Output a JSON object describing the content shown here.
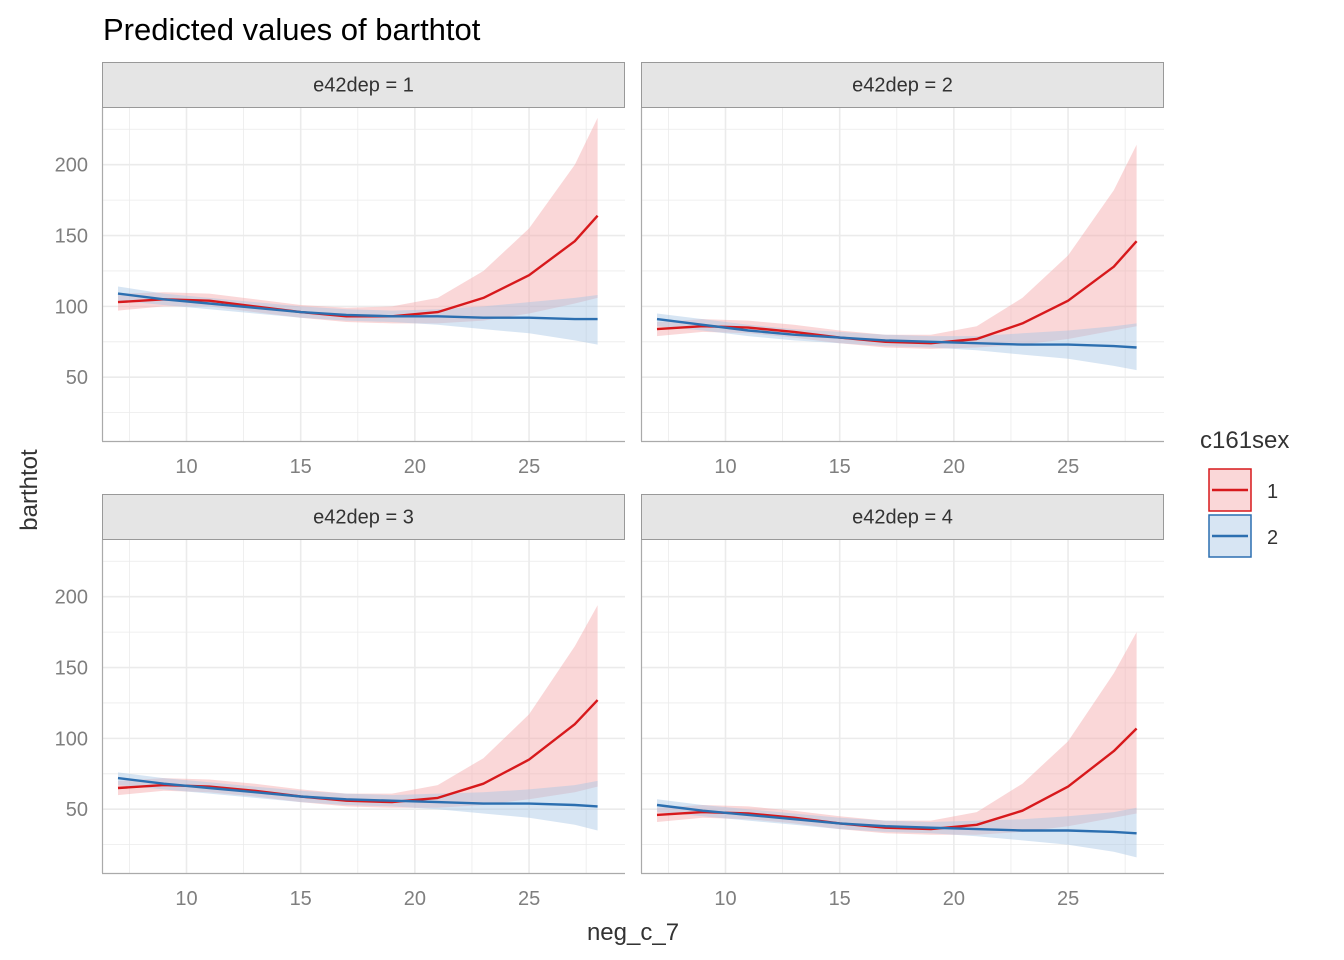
{
  "chart_data": {
    "type": "line",
    "title": "Predicted values of barthtot",
    "xlabel": "neg_c_7",
    "ylabel": "barthtot",
    "xlim": [
      6.3,
      29.2
    ],
    "ylim": [
      5,
      240
    ],
    "x_ticks": [
      10,
      15,
      20,
      25
    ],
    "y_ticks": [
      50,
      100,
      150,
      200
    ],
    "grid": true,
    "legend": {
      "title": "c161sex",
      "position": "right",
      "entries": [
        "1",
        "2"
      ]
    },
    "colors": {
      "series1_line": "#d7191c",
      "series1_band": "#f4a6a8",
      "series2_line": "#2c6fb0",
      "series2_band": "#a6c5e4",
      "strip_fill": "#e5e5e5",
      "strip_border": "#999999",
      "grid": "#ebebeb",
      "axis": "#aaaaaa"
    },
    "panels": [
      {
        "label": "e42dep = 1",
        "x": [
          7,
          9,
          11,
          13,
          15,
          17,
          19,
          21,
          23,
          25,
          27,
          28
        ],
        "series": [
          {
            "name": "1",
            "values": [
              103,
              105,
              104,
              100,
              96,
              93,
              93,
              96,
              106,
              122,
              146,
              164
            ],
            "lower": [
              97,
              100,
              100,
              96,
              92,
              89,
              88,
              88,
              90,
              95,
              102,
              106
            ],
            "upper": [
              109,
              110,
              109,
              105,
              101,
              99,
              100,
              106,
              125,
              155,
              200,
              233
            ]
          },
          {
            "name": "2",
            "values": [
              109,
              105,
              102,
              99,
              96,
              94,
              93,
              93,
              92,
              92,
              91,
              91
            ],
            "lower": [
              104,
              101,
              98,
              95,
              92,
              90,
              89,
              87,
              84,
              81,
              76,
              73
            ],
            "upper": [
              114,
              109,
              106,
              103,
              100,
              98,
              97,
              98,
              100,
              103,
              106,
              108
            ]
          }
        ]
      },
      {
        "label": "e42dep = 2",
        "x": [
          7,
          9,
          11,
          13,
          15,
          17,
          19,
          21,
          23,
          25,
          27,
          28
        ],
        "series": [
          {
            "name": "1",
            "values": [
              84,
              86,
              85,
              82,
              78,
              75,
              74,
              77,
              88,
              104,
              128,
              146
            ],
            "lower": [
              79,
              82,
              81,
              78,
              74,
              71,
              70,
              71,
              73,
              77,
              83,
              86
            ],
            "upper": [
              89,
              91,
              90,
              87,
              83,
              80,
              80,
              86,
              106,
              136,
              182,
              214
            ]
          },
          {
            "name": "2",
            "values": [
              91,
              87,
              83,
              80,
              78,
              76,
              75,
              74,
              73,
              73,
              72,
              71
            ],
            "lower": [
              86,
              83,
              79,
              76,
              74,
              72,
              71,
              69,
              66,
              63,
              58,
              55
            ],
            "upper": [
              95,
              91,
              87,
              84,
              82,
              80,
              79,
              79,
              81,
              83,
              86,
              88
            ]
          }
        ]
      },
      {
        "label": "e42dep = 3",
        "x": [
          7,
          9,
          11,
          13,
          15,
          17,
          19,
          21,
          23,
          25,
          27,
          28
        ],
        "series": [
          {
            "name": "1",
            "values": [
              65,
              67,
              66,
              63,
              59,
              56,
              55,
              58,
              68,
              85,
              110,
              127
            ],
            "lower": [
              60,
              63,
              62,
              59,
              55,
              52,
              51,
              51,
              53,
              57,
              62,
              66
            ],
            "upper": [
              70,
              72,
              71,
              68,
              64,
              61,
              61,
              67,
              86,
              117,
              165,
              194
            ]
          },
          {
            "name": "2",
            "values": [
              72,
              68,
              65,
              62,
              59,
              57,
              56,
              55,
              54,
              54,
              53,
              52
            ],
            "lower": [
              67,
              64,
              61,
              58,
              55,
              53,
              52,
              50,
              47,
              44,
              39,
              35
            ],
            "upper": [
              76,
              72,
              69,
              66,
              63,
              61,
              60,
              61,
              62,
              64,
              67,
              70
            ]
          }
        ]
      },
      {
        "label": "e42dep = 4",
        "x": [
          7,
          9,
          11,
          13,
          15,
          17,
          19,
          21,
          23,
          25,
          27,
          28
        ],
        "series": [
          {
            "name": "1",
            "values": [
              46,
              48,
              47,
              44,
              40,
              37,
              36,
              39,
              49,
              66,
              91,
              107
            ],
            "lower": [
              41,
              44,
              43,
              40,
              36,
              33,
              32,
              32,
              34,
              38,
              44,
              47
            ],
            "upper": [
              51,
              53,
              52,
              49,
              45,
              42,
              42,
              48,
              68,
              98,
              146,
              175
            ]
          },
          {
            "name": "2",
            "values": [
              53,
              49,
              46,
              43,
              40,
              38,
              37,
              36,
              35,
              35,
              34,
              33
            ],
            "lower": [
              48,
              45,
              42,
              39,
              36,
              34,
              33,
              31,
              28,
              25,
              20,
              16
            ],
            "upper": [
              57,
              53,
              50,
              47,
              44,
              42,
              41,
              42,
              43,
              45,
              48,
              51
            ]
          }
        ]
      }
    ]
  }
}
